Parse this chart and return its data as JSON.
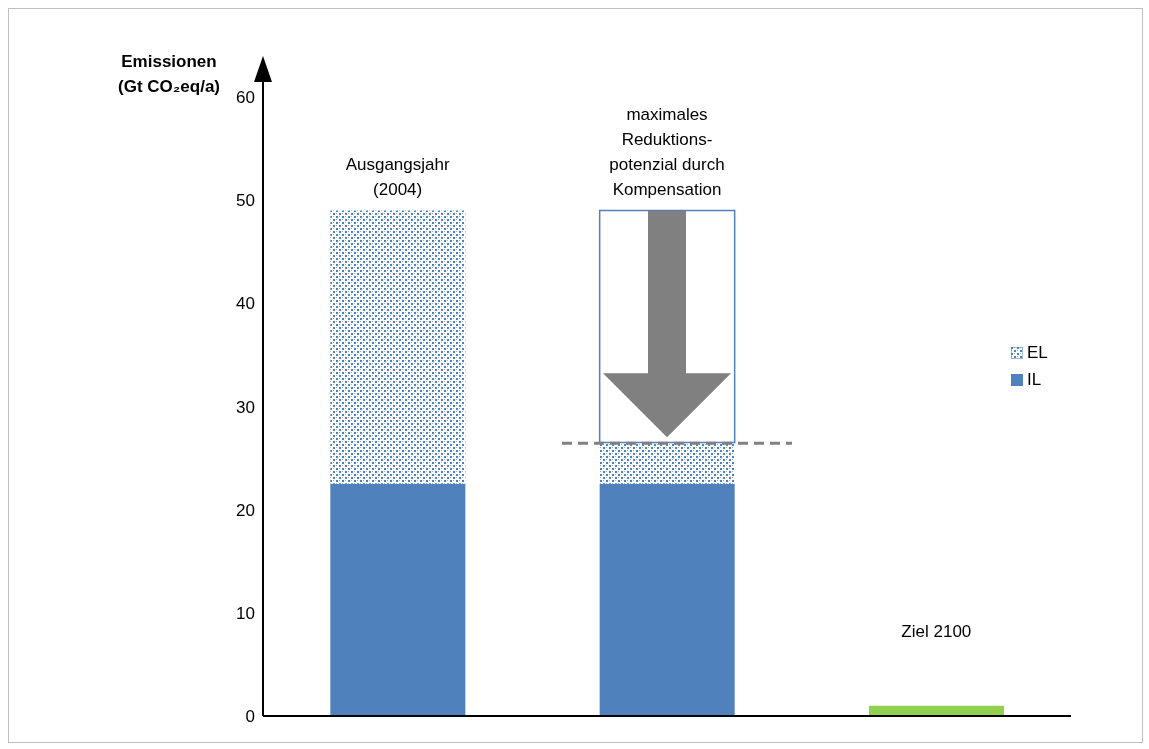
{
  "chart_data": {
    "type": "bar",
    "ylabel": "Emissionen\n(Gt CO₂eq/a)",
    "categories": [
      "Ausgangsjahr\n(2004)",
      "maximales\nReduktions-\npotenzial durch\nKompensation",
      "Ziel 2100"
    ],
    "stacked": true,
    "series": [
      {
        "name": "IL",
        "color": "#4f81bd",
        "values": [
          22.5,
          22.5,
          null
        ]
      },
      {
        "name": "EL",
        "color": "#4f81bd",
        "values": [
          26.5,
          4,
          null
        ]
      },
      {
        "color": "#ffffff",
        "values": [
          null,
          22.5,
          null
        ]
      },
      {
        "color": "#92d050",
        "values": [
          null,
          null,
          1
        ]
      }
    ],
    "ylim": [
      0,
      63
    ],
    "yticks": [
      0,
      10,
      20,
      30,
      40,
      50,
      60
    ],
    "legend": "right",
    "ref_lines": [
      {
        "axis": "y",
        "value": 26.5,
        "color": "#808080",
        "line_style": "dashed"
      }
    ]
  }
}
